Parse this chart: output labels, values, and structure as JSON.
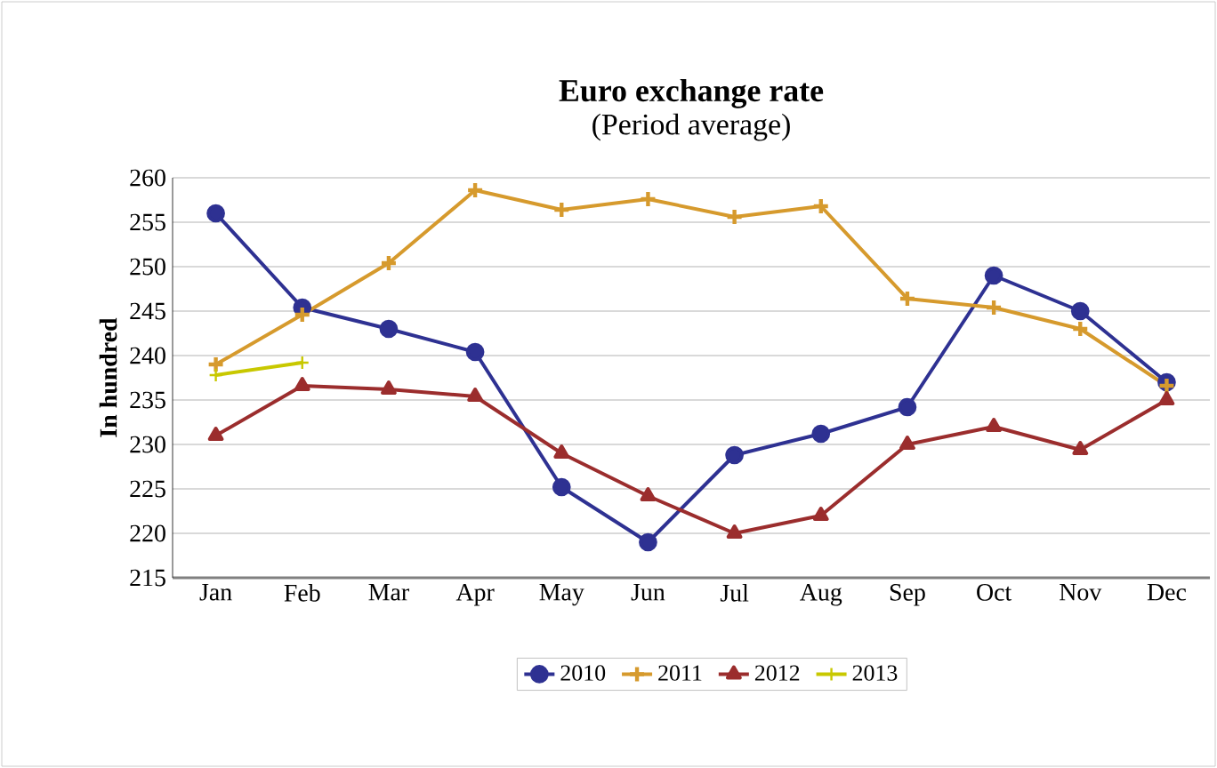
{
  "chart_data": {
    "type": "line",
    "title": "Euro exchange rate",
    "subtitle": "(Period average)",
    "ylabel": "In hundred",
    "categories": [
      "Jan",
      "Feb",
      "Mar",
      "Apr",
      "May",
      "Jun",
      "Jul",
      "Aug",
      "Sep",
      "Oct",
      "Nov",
      "Dec"
    ],
    "series": [
      {
        "name": "2010",
        "color": "#2e3192",
        "marker": "circle",
        "values": [
          256,
          245.4,
          243,
          240.4,
          225.2,
          219,
          228.8,
          231.2,
          234.2,
          249,
          245,
          237
        ]
      },
      {
        "name": "2011",
        "color": "#d69a2d",
        "marker": "cross",
        "values": [
          239,
          244.6,
          250.4,
          258.6,
          256.4,
          257.6,
          255.6,
          256.8,
          246.4,
          245.4,
          243,
          236.6
        ]
      },
      {
        "name": "2012",
        "color": "#9b2d2d",
        "marker": "triangle",
        "values": [
          231,
          236.6,
          236.2,
          235.4,
          229,
          224.2,
          220,
          222,
          230,
          232,
          229.4,
          235
        ]
      },
      {
        "name": "2013",
        "color": "#c8c800",
        "marker": "cross",
        "values": [
          237.8,
          239.2,
          null,
          null,
          null,
          null,
          null,
          null,
          null,
          null,
          null,
          null
        ]
      }
    ],
    "ylim": [
      215,
      260
    ],
    "yticks": [
      215,
      220,
      225,
      230,
      235,
      240,
      245,
      250,
      255,
      260
    ],
    "grid": "y",
    "legend": "bottom",
    "line_style": "solid"
  }
}
